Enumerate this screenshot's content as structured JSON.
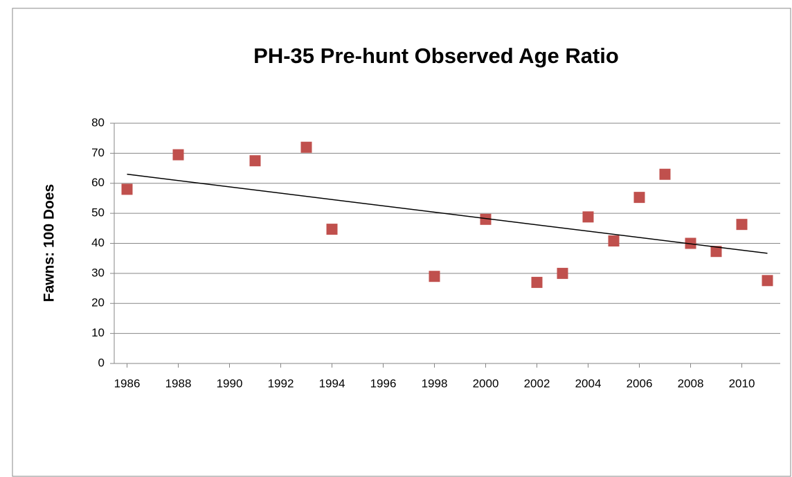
{
  "chart_data": {
    "type": "scatter",
    "title": "PH-35 Pre-hunt Observed Age Ratio",
    "y_label": "Fawns: 100 Does",
    "x": [
      1986,
      1988,
      1991,
      1993,
      1994,
      1998,
      2000,
      2002,
      2003,
      2004,
      2005,
      2006,
      2007,
      2008,
      2009,
      2010,
      2011
    ],
    "series": [
      {
        "color": "#c0504d",
        "values": [
          58,
          69.5,
          67.5,
          72,
          44.7,
          29,
          48,
          27,
          30,
          48.8,
          40.8,
          55.3,
          63,
          40,
          37.3,
          46.3,
          27.6
        ]
      }
    ],
    "trendline": "linear",
    "xlim": [
      1985.5,
      2011.5
    ],
    "xticks": [
      1986,
      1988,
      1990,
      1992,
      1994,
      1996,
      1998,
      2000,
      2002,
      2004,
      2006,
      2008,
      2010
    ],
    "ylim": [
      0,
      80
    ],
    "yticks": [
      0,
      10,
      20,
      30,
      40,
      50,
      60,
      70,
      80
    ],
    "grid": true
  }
}
